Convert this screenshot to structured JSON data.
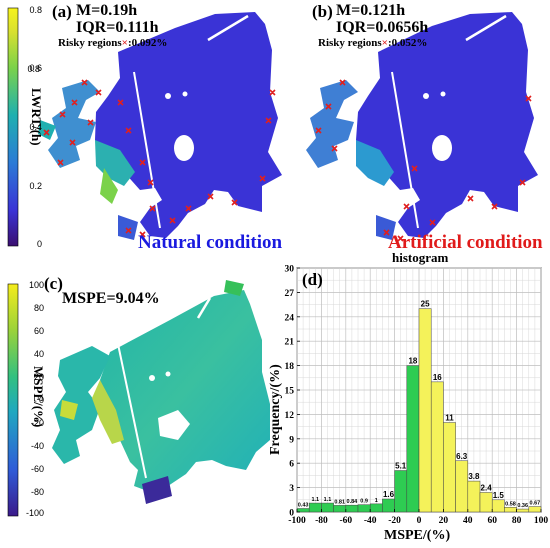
{
  "panel_a": {
    "label": "(a)",
    "stat_m": "M=0.19h",
    "stat_iqr": "IQR=0.111h",
    "risky_prefix": "Risky regions",
    "risky_mark": "×",
    "risky_value": ":0.092%",
    "condition": "Natural condition",
    "condition_color": "#1a1adf"
  },
  "panel_b": {
    "label": "(b)",
    "stat_m": "M=0.121h",
    "stat_iqr": "IQR=0.0656h",
    "risky_prefix": "Risky regions",
    "risky_mark": "×",
    "risky_value": ":0.052%",
    "condition": "Artificial condition",
    "condition_color": "#e01a1a"
  },
  "colorbar_top": {
    "label": "LWRT/(h)",
    "ticks": [
      "0.8",
      "0.6",
      "0.4",
      "0.2",
      "0"
    ]
  },
  "panel_c": {
    "label": "(c)",
    "stat": "MSPE=9.04%",
    "colorbar_label": "MSPE/(%)",
    "colorbar_ticks": [
      "100",
      "80",
      "60",
      "40",
      "20",
      "0",
      "-20",
      "-40",
      "-60",
      "-80",
      "-100"
    ]
  },
  "panel_d": {
    "label": "(d)",
    "title": "histogram"
  },
  "colors": {
    "water_low": "#3a33d6",
    "risk_marker": "#e02020",
    "bar_negative": "#2ecc52",
    "bar_positive": "#f4f25a"
  },
  "chart_data": {
    "type": "bar",
    "title": "histogram",
    "xlabel": "MSPE/(%)",
    "ylabel": "Frequency/(%)",
    "xlim": [
      -100,
      100
    ],
    "ylim": [
      0,
      30
    ],
    "xticks": [
      -100,
      -80,
      -60,
      -40,
      -20,
      0,
      20,
      40,
      60,
      80,
      100
    ],
    "yticks": [
      0,
      3,
      6,
      9,
      12,
      15,
      18,
      21,
      24,
      27,
      30
    ],
    "grid": true,
    "bin_width": 10,
    "bins": [
      -100,
      -90,
      -80,
      -70,
      -60,
      -50,
      -40,
      -30,
      -20,
      -10,
      0,
      10,
      20,
      30,
      40,
      50,
      60,
      70,
      80,
      90
    ],
    "values": [
      0.43,
      1.1,
      1.1,
      0.81,
      0.84,
      0.9,
      1.0,
      1.6,
      5.1,
      18,
      25,
      16,
      11,
      6.3,
      3.8,
      2.4,
      1.5,
      0.58,
      0.36,
      0.67
    ],
    "data_labels": [
      "0.43",
      "1.1",
      "1.1",
      "0.81",
      "0.84",
      "0.9",
      "1",
      "1.6",
      "5.1",
      "18",
      "25",
      "16",
      "11",
      "6.3",
      "3.8",
      "2.4",
      "1.5",
      "0.58",
      "0.36",
      "0.67"
    ]
  }
}
